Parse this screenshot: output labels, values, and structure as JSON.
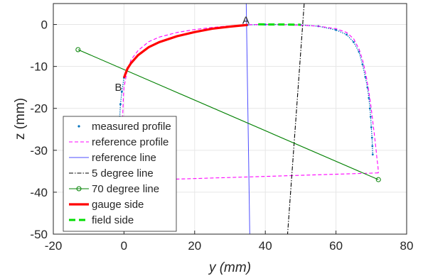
{
  "chart_data": {
    "type": "line",
    "xlabel": "y (mm)",
    "ylabel": "z (mm)",
    "xlim": [
      -20,
      80
    ],
    "ylim": [
      -50,
      5
    ],
    "xticks": [
      -20,
      0,
      20,
      40,
      60,
      80
    ],
    "yticks": [
      0,
      -10,
      -20,
      -30,
      -40,
      -50
    ],
    "grid": true,
    "legend_position": "lower-left",
    "annotations": [
      {
        "text": "A",
        "x": 34.5,
        "y": 0.2
      },
      {
        "text": "B",
        "x": -1.6,
        "y": -15.8
      }
    ],
    "series": [
      {
        "name": "measured profile",
        "color": "#0072BD",
        "style": "dots",
        "x": [
          -1.2,
          -1.0,
          -0.6,
          0,
          1,
          2,
          4,
          7,
          10,
          15,
          20,
          25,
          30,
          35,
          40,
          45,
          50,
          55,
          60,
          63,
          65,
          66.5,
          67.5,
          68.3,
          68.9,
          69.3,
          69.6,
          69.8,
          70.0,
          70.2,
          70.3,
          70.4
        ],
        "y": [
          -22,
          -19,
          -16,
          -12.7,
          -10.5,
          -9.2,
          -7.3,
          -5.4,
          -4.2,
          -2.8,
          -1.8,
          -1.0,
          -0.5,
          -0.1,
          0.0,
          0.0,
          -0.1,
          -0.4,
          -1.3,
          -2.4,
          -4.2,
          -6.5,
          -9.5,
          -12.5,
          -15,
          -17.5,
          -20,
          -22,
          -24.5,
          -27,
          -29,
          -31
        ]
      },
      {
        "name": "reference profile",
        "color": "#FF00FF",
        "style": "dashed",
        "x": [
          -0.4,
          -0.2,
          0,
          0.8,
          2,
          4,
          7,
          10,
          15,
          20,
          25,
          30,
          35,
          40,
          45,
          50,
          55,
          60,
          63,
          65,
          66.6,
          67.7,
          68.6,
          69.3,
          69.9,
          70.4,
          70.9,
          71.3,
          71.6,
          71.9,
          72.0
        ],
        "y": [
          -22.5,
          -18,
          -15,
          -11.5,
          -8.4,
          -6.2,
          -4.1,
          -3.0,
          -1.9,
          -1.2,
          -0.7,
          -0.3,
          -0.05,
          0.0,
          -0.05,
          -0.15,
          -0.4,
          -1.0,
          -1.9,
          -3.4,
          -6,
          -9,
          -12.5,
          -16,
          -19.5,
          -23,
          -26.5,
          -29.5,
          -32,
          -34,
          -35.4
        ]
      },
      {
        "name": "reference profile (base)",
        "color": "#FF00FF",
        "style": "dashed",
        "x": [
          72.0,
          -1.5
        ],
        "y": [
          -35.4,
          -37.3
        ]
      },
      {
        "name": "reference line",
        "color": "#4D4DFF",
        "style": "solid",
        "x": [
          34.6,
          35.6
        ],
        "y": [
          5,
          -50
        ]
      },
      {
        "name": "5 degree line",
        "color": "#000000",
        "style": "dashdot",
        "x": [
          51.0,
          46.3
        ],
        "y": [
          5,
          -50
        ]
      },
      {
        "name": "70 degree line",
        "color": "#008000",
        "style": "solid-circle-ends",
        "x": [
          -13,
          72
        ],
        "y": [
          -6,
          -37
        ]
      },
      {
        "name": "gauge side",
        "color": "#FF0000",
        "style": "solid-thick",
        "x": [
          0,
          1,
          2,
          4,
          7,
          10,
          15,
          20,
          25,
          30,
          35
        ],
        "y": [
          -12.7,
          -10.5,
          -9.2,
          -7.3,
          -5.4,
          -4.2,
          -2.8,
          -1.8,
          -1.0,
          -0.5,
          -0.1
        ]
      },
      {
        "name": "field side",
        "color": "#00DD00",
        "style": "dashed-thick",
        "x": [
          38,
          42,
          46,
          50
        ],
        "y": [
          0.05,
          0.0,
          0.0,
          -0.05
        ]
      }
    ],
    "legend": [
      {
        "label": "measured profile",
        "series": 0
      },
      {
        "label": "reference profile",
        "series": 1
      },
      {
        "label": "reference line",
        "series": 3
      },
      {
        "label": "5 degree line",
        "series": 4
      },
      {
        "label": "70 degree line",
        "series": 5
      },
      {
        "label": "gauge side",
        "series": 6
      },
      {
        "label": "field side",
        "series": 7
      }
    ]
  }
}
